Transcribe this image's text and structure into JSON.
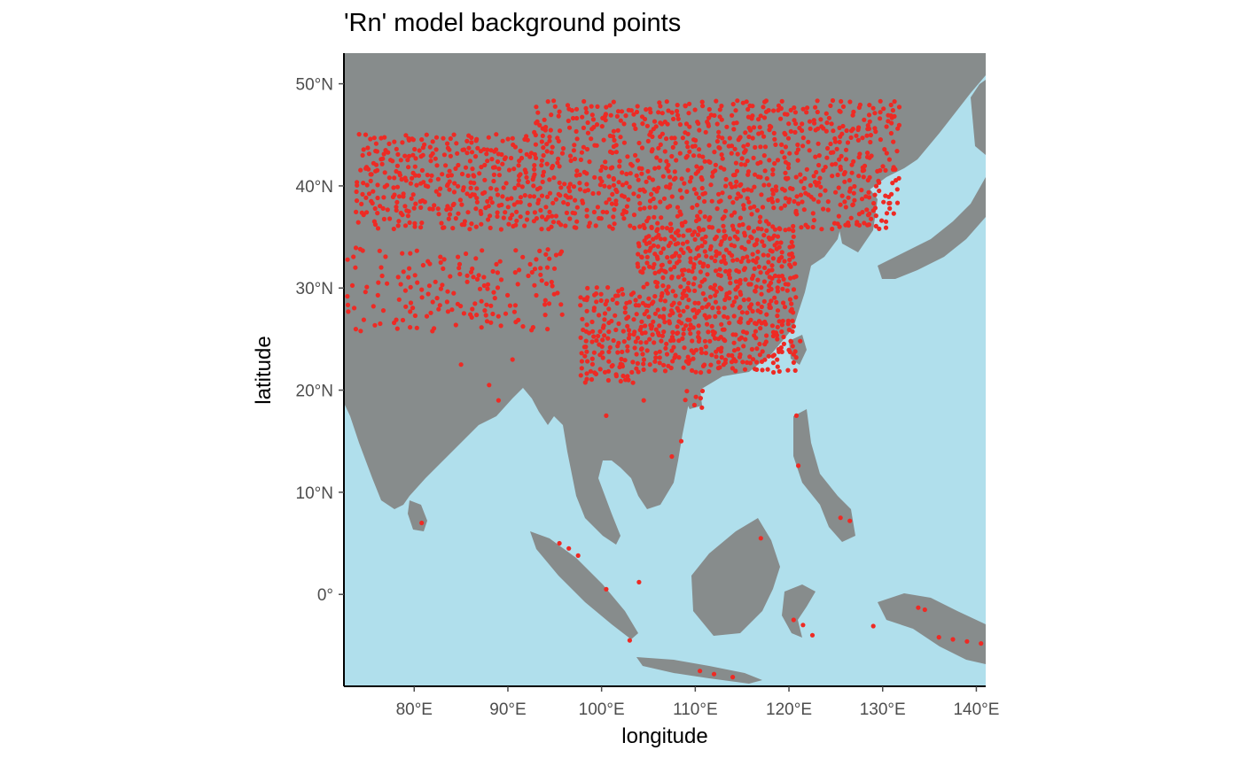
{
  "chart_data": {
    "type": "scatter",
    "title": "'Rn' model background points",
    "xlabel": "longitude",
    "ylabel": "latitude",
    "xlim": [
      72.5,
      141
    ],
    "ylim": [
      -9,
      53
    ],
    "x_ticks": [
      {
        "value": 80,
        "label": "80°E"
      },
      {
        "value": 90,
        "label": "90°E"
      },
      {
        "value": 100,
        "label": "100°E"
      },
      {
        "value": 110,
        "label": "110°E"
      },
      {
        "value": 120,
        "label": "120°E"
      },
      {
        "value": 130,
        "label": "130°E"
      },
      {
        "value": 140,
        "label": "140°E"
      }
    ],
    "y_ticks": [
      {
        "value": 0,
        "label": "0°"
      },
      {
        "value": 10,
        "label": "10°N"
      },
      {
        "value": 20,
        "label": "20°N"
      },
      {
        "value": 30,
        "label": "30°N"
      },
      {
        "value": 40,
        "label": "40°N"
      },
      {
        "value": 50,
        "label": "50°N"
      }
    ],
    "grid": false,
    "colors": {
      "ocean": "#b0dfec",
      "land": "#878c8c",
      "points": "#ee2a24",
      "axis": "#000000",
      "tick_text": "#4d4d4d"
    },
    "series": [
      {
        "regions": [
          {
            "lon": [
              93,
              132
            ],
            "lat": [
              36,
              48.5
            ],
            "density": 0.55
          },
          {
            "lon": [
              74,
              93
            ],
            "lat": [
              36,
              45
            ],
            "density": 0.6
          },
          {
            "lon": [
              104,
              121
            ],
            "lat": [
              22,
              36
            ],
            "density": 0.8
          },
          {
            "lon": [
              98,
              104
            ],
            "lat": [
              21,
              30
            ],
            "density": 0.7
          },
          {
            "lon": [
              73,
              96
            ],
            "lat": [
              26,
              34
            ],
            "density": 0.3
          },
          {
            "lon": [
              109,
              111
            ],
            "lat": [
              18,
              20
            ],
            "density": 0.5
          }
        ],
        "scattered": [
          [
            120.5,
            23.5
          ],
          [
            121.2,
            24.8
          ],
          [
            120.8,
            17.5
          ],
          [
            121,
            12.6
          ],
          [
            125.5,
            7.5
          ],
          [
            126.5,
            7.2
          ],
          [
            117,
            5.5
          ],
          [
            108.5,
            15
          ],
          [
            107.5,
            13.5
          ],
          [
            95.5,
            5
          ],
          [
            96.5,
            4.5
          ],
          [
            97.5,
            3.8
          ],
          [
            103,
            -4.5
          ],
          [
            110.5,
            -7.5
          ],
          [
            112,
            -7.8
          ],
          [
            114,
            -8.1
          ],
          [
            120.5,
            -2.5
          ],
          [
            121.5,
            -3
          ],
          [
            122.5,
            -4
          ],
          [
            129,
            -3.1
          ],
          [
            133.8,
            -1.3
          ],
          [
            134.5,
            -1.5
          ],
          [
            136,
            -4.2
          ],
          [
            137.5,
            -4.4
          ],
          [
            139,
            -4.6
          ],
          [
            140.5,
            -4.8
          ],
          [
            80.8,
            7
          ],
          [
            100.5,
            0.5
          ],
          [
            104,
            1.2
          ],
          [
            85,
            22.5
          ],
          [
            88,
            20.5
          ],
          [
            100.5,
            17.5
          ],
          [
            104.5,
            19
          ],
          [
            89,
            19
          ],
          [
            90.5,
            23
          ]
        ]
      }
    ]
  }
}
